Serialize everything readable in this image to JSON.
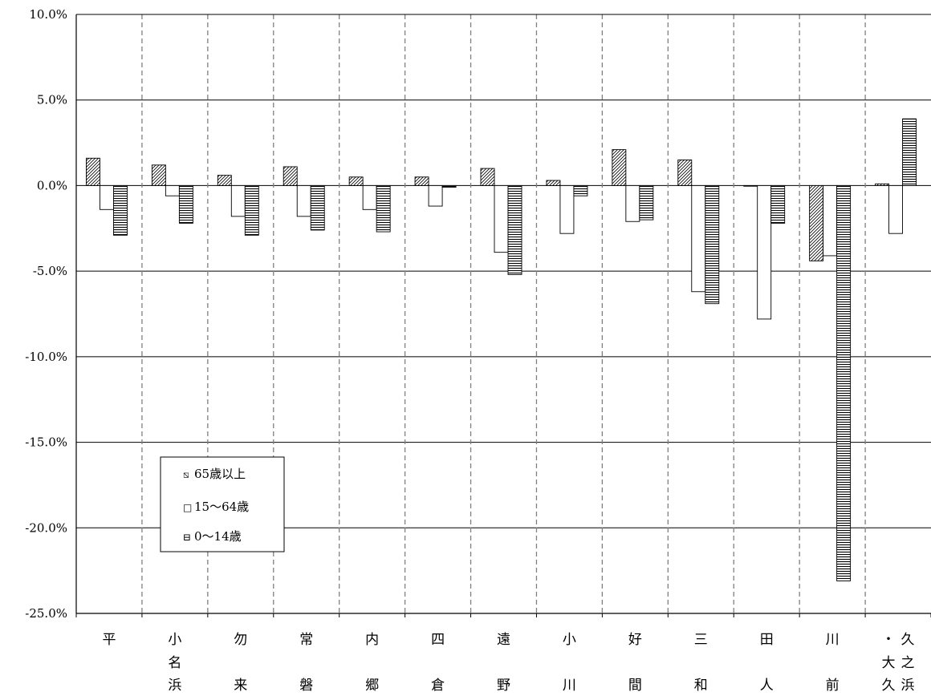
{
  "chart_data": {
    "type": "bar",
    "categories": [
      "平",
      "小名浜",
      "勿来",
      "常磐",
      "内郷",
      "四倉",
      "遠野",
      "小川",
      "好間",
      "三和",
      "田人",
      "川前",
      "久之浜・大久"
    ],
    "category_label_columns": [
      [
        [
          "平"
        ]
      ],
      [
        [
          "小",
          "名",
          "浜"
        ]
      ],
      [
        [
          "勿",
          "",
          "来"
        ]
      ],
      [
        [
          "常",
          "",
          "磐"
        ]
      ],
      [
        [
          "内",
          "",
          "郷"
        ]
      ],
      [
        [
          "四",
          "",
          "倉"
        ]
      ],
      [
        [
          "遠",
          "",
          "野"
        ]
      ],
      [
        [
          "小",
          "",
          "川"
        ]
      ],
      [
        [
          "好",
          "",
          "間"
        ]
      ],
      [
        [
          "三",
          "",
          "和"
        ]
      ],
      [
        [
          "田",
          "",
          "人"
        ]
      ],
      [
        [
          "川",
          "",
          "前"
        ]
      ],
      [
        [
          "・",
          "大",
          "久"
        ],
        [
          "久",
          "之",
          "浜"
        ]
      ]
    ],
    "series": [
      {
        "name": "65歳以上",
        "values": [
          1.6,
          1.2,
          0.6,
          1.1,
          0.5,
          0.5,
          1.0,
          0.3,
          2.1,
          1.5,
          0.0,
          -4.4,
          0.1
        ]
      },
      {
        "name": "15〜64歳",
        "values": [
          -1.4,
          -0.6,
          -1.8,
          -1.8,
          -1.4,
          -1.2,
          -3.9,
          -2.8,
          -2.1,
          -6.2,
          -7.8,
          -4.1,
          -2.8
        ]
      },
      {
        "name": "0〜14歳",
        "values": [
          -2.9,
          -2.2,
          -2.9,
          -2.6,
          -2.7,
          -0.1,
          -5.2,
          -0.6,
          -2.0,
          -6.9,
          -2.2,
          -23.1,
          3.9
        ]
      }
    ],
    "yticks": [
      "10.0%",
      "5.0%",
      "0.0%",
      "-5.0%",
      "-10.0%",
      "-15.0%",
      "-20.0%",
      "-25.0%"
    ],
    "ytick_values": [
      10,
      5,
      0,
      -5,
      -10,
      -15,
      -20,
      -25
    ],
    "ylim": [
      -25,
      10
    ],
    "title": "",
    "xlabel": "",
    "ylabel": "",
    "grid": true,
    "legend_position": "lower-left",
    "colors": {
      "line": "#000000",
      "fill": "#ffffff",
      "divider": "#808080"
    },
    "patterns": [
      "diagonal-hatch",
      "empty",
      "horizontal-stripes"
    ],
    "legend_markers": [
      "⧅",
      "□",
      "⊟"
    ]
  }
}
